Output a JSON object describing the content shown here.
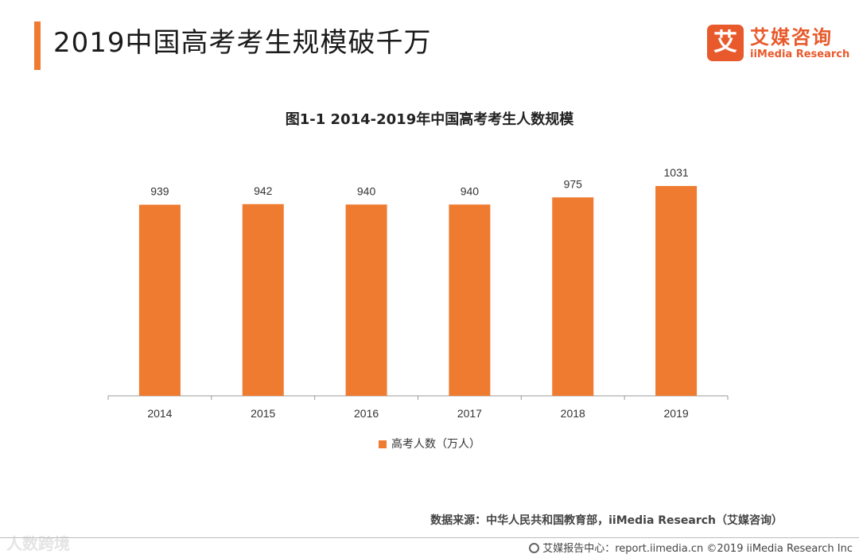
{
  "header": {
    "title": "2019中国高考考生规模破千万",
    "accent_color": "#EE7B30"
  },
  "logo": {
    "mark": "艾",
    "name_cn": "艾媒咨询",
    "name_en": "iiMedia Research",
    "color": "#E85A2C"
  },
  "chart_data": {
    "type": "bar",
    "title": "图1-1 2014-2019年中国高考考生人数规模",
    "categories": [
      "2014",
      "2015",
      "2016",
      "2017",
      "2018",
      "2019"
    ],
    "series": [
      {
        "name": "高考人数（万人）",
        "values": [
          939,
          942,
          940,
          940,
          975,
          1031
        ],
        "color": "#EE7B30"
      }
    ],
    "value_labels": [
      "939",
      "942",
      "940",
      "940",
      "975",
      "1031"
    ],
    "xlabel": "",
    "ylabel": "",
    "ylim": [
      0,
      1070
    ],
    "grid": false,
    "legend_position": "bottom"
  },
  "source": "数据来源：中华人民共和国教育部，iiMedia Research（艾媒咨询）",
  "footer": {
    "text": "艾媒报告中心：report.iimedia.cn ©2019 iiMedia Research Inc"
  },
  "watermark": "人数跨境"
}
